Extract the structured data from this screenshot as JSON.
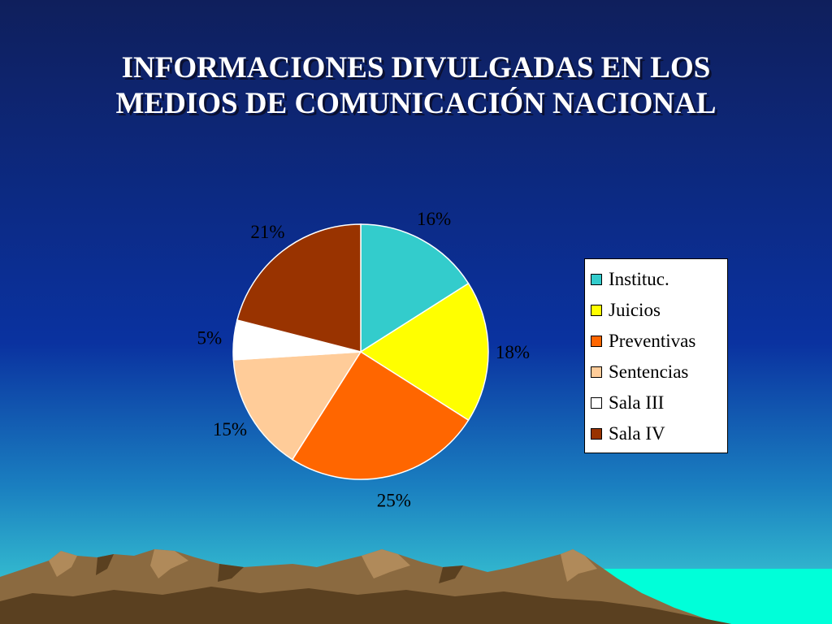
{
  "slide": {
    "title_line1": "INFORMACIONES DIVULGADAS EN LOS",
    "title_line2": "MEDIOS DE COMUNICACIÓN NACIONAL"
  },
  "colors": {
    "sky_top": "#0f1f5c",
    "sky_mid": "#0a32a0",
    "sky_low": "#1a7fc0",
    "horizon": "#3fd6d6",
    "water": "#00ffd9",
    "mountain_main": "#8b6a40",
    "mountain_light": "#b08a5a",
    "mountain_shadow": "#5a4020",
    "slice_outline": "#ffffff"
  },
  "chart_data": {
    "type": "pie",
    "title": "",
    "series": [
      {
        "name": "Instituc.",
        "value": 16,
        "label": "16%",
        "color": "#33cccc"
      },
      {
        "name": "Juicios",
        "value": 18,
        "label": "18%",
        "color": "#ffff00"
      },
      {
        "name": "Preventivas",
        "value": 25,
        "label": "25%",
        "color": "#ff6600"
      },
      {
        "name": "Sentencias",
        "value": 15,
        "label": "15%",
        "color": "#ffcc99"
      },
      {
        "name": "Sala III",
        "value": 5,
        "label": "5%",
        "color": "#ffffff"
      },
      {
        "name": "Sala IV",
        "value": 21,
        "label": "21%",
        "color": "#993300"
      }
    ],
    "start_angle": "12 o'clock",
    "direction": "clockwise",
    "legend_position": "right"
  }
}
